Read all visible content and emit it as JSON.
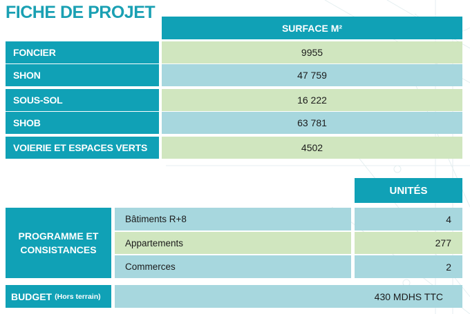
{
  "title": "FICHE DE PROJET",
  "surface_table": {
    "header": "SURFACE M²",
    "rows": [
      {
        "label": "FONCIER",
        "value": "9955"
      },
      {
        "label": "SHON",
        "value": "47 759"
      },
      {
        "label": "SOUS-SOL",
        "value": "16 222"
      },
      {
        "label": "SHOB",
        "value": "63 781"
      },
      {
        "label": "VOIERIE ET ESPACES VERTS",
        "value": "4502"
      }
    ]
  },
  "program_table": {
    "header": "UNITÉS",
    "label": "PROGRAMME ET CONSISTANCES",
    "rows": [
      {
        "label": "Bâtiments R+8",
        "value": "4"
      },
      {
        "label": "Appartements",
        "value": "277"
      },
      {
        "label": "Commerces",
        "value": "2"
      }
    ]
  },
  "budget": {
    "label": "BUDGET",
    "label_note": "(Hors terrain)",
    "value": "430 MDHS TTC"
  },
  "colors": {
    "teal": "#10a1b6",
    "green_row": "#d0e6bf",
    "blue_row": "#a7d7de"
  }
}
